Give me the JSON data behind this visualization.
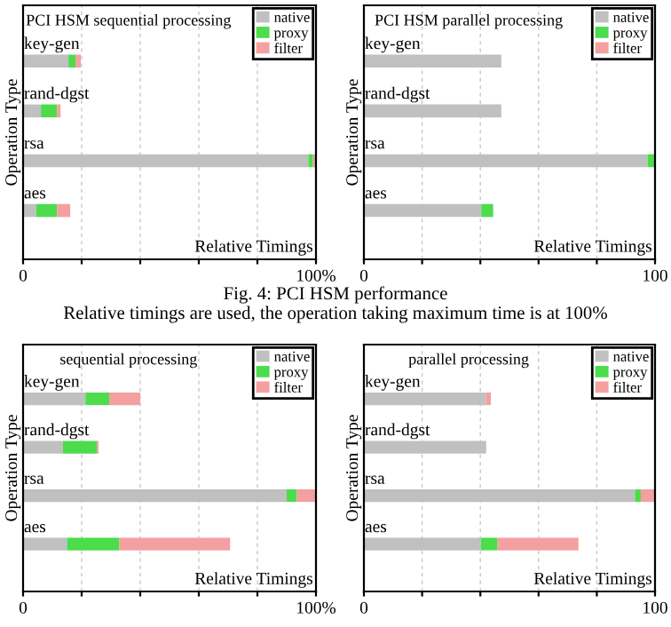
{
  "chart_data": [
    {
      "type": "bar",
      "orientation": "horizontal",
      "stacked": true,
      "title": "PCI HSM sequential processing",
      "xlabel": "Relative Timings",
      "ylabel": "Operation Type",
      "categories": [
        "key-gen",
        "rand-dgst",
        "rsa",
        "aes"
      ],
      "series": [
        {
          "name": "native",
          "color": "#c0c0c0",
          "values": [
            15.5,
            6.1,
            97.4,
            4.5
          ]
        },
        {
          "name": "proxy",
          "color": "#4cdc4c",
          "values": [
            2.4,
            5.5,
            1.6,
            7.1
          ]
        },
        {
          "name": "filter",
          "color": "#f4a0a0",
          "values": [
            1.8,
            1.2,
            1.0,
            4.5
          ]
        }
      ],
      "xlim": [
        0,
        100
      ],
      "xticks": [
        0,
        {
          "value": 20,
          "label": null
        },
        {
          "value": 40,
          "label": null
        },
        {
          "value": 60,
          "label": null
        },
        {
          "value": 80,
          "label": null
        },
        {
          "value": 100,
          "label": "100%"
        }
      ],
      "grid": "x",
      "legend": "top right",
      "annotations": [
        "Fig. 4: PCI HSM performance",
        "Relative timings are used, the operation taking maximum time is at 100%"
      ]
    },
    {
      "type": "bar",
      "orientation": "horizontal",
      "stacked": true,
      "title": "PCI HSM parallel processing",
      "xlabel": "Relative Timings",
      "ylabel": "Operation Type",
      "categories": [
        "key-gen",
        "rand-dgst",
        "rsa",
        "aes"
      ],
      "series": [
        {
          "name": "native",
          "color": "#c0c0c0",
          "values": [
            47.2,
            47.2,
            97.4,
            40.3
          ]
        },
        {
          "name": "proxy",
          "color": "#4cdc4c",
          "values": [
            0,
            0,
            2.4,
            4.1
          ]
        },
        {
          "name": "filter",
          "color": "#f4a0a0",
          "values": [
            0,
            0,
            0,
            0
          ]
        }
      ],
      "xlim": [
        0,
        100
      ],
      "xticks": [
        0,
        {
          "value": 20,
          "label": null
        },
        {
          "value": 40,
          "label": null
        },
        {
          "value": 60,
          "label": null
        },
        {
          "value": 80,
          "label": null
        },
        100
      ],
      "grid": "x",
      "legend": "top right"
    },
    {
      "type": "bar",
      "orientation": "horizontal",
      "stacked": true,
      "title": "sequential processing",
      "xlabel": "Relative Timings",
      "ylabel": "Operation Type",
      "categories": [
        "key-gen",
        "rand-dgst",
        "rsa",
        "aes"
      ],
      "series": [
        {
          "name": "native",
          "color": "#c0c0c0",
          "values": [
            21.3,
            13.6,
            90.0,
            15.0
          ]
        },
        {
          "name": "proxy",
          "color": "#4cdc4c",
          "values": [
            8.1,
            11.6,
            3.5,
            17.9
          ]
        },
        {
          "name": "filter",
          "color": "#f4a0a0",
          "values": [
            10.6,
            0.6,
            6.5,
            37.8
          ]
        }
      ],
      "xlim": [
        0,
        100
      ],
      "xticks": [
        0,
        {
          "value": 20,
          "label": null
        },
        {
          "value": 40,
          "label": null
        },
        {
          "value": 60,
          "label": null
        },
        {
          "value": 80,
          "label": null
        },
        {
          "value": 100,
          "label": "100%"
        }
      ],
      "grid": "x",
      "legend": "top right"
    },
    {
      "type": "bar",
      "orientation": "horizontal",
      "stacked": true,
      "title": "parallel processing",
      "xlabel": "Relative Timings",
      "ylabel": "Operation Type",
      "categories": [
        "key-gen",
        "rand-dgst",
        "rsa",
        "aes"
      ],
      "series": [
        {
          "name": "native",
          "color": "#c0c0c0",
          "values": [
            42.0,
            42.0,
            93.1,
            40.2
          ]
        },
        {
          "name": "proxy",
          "color": "#4cdc4c",
          "values": [
            0,
            0,
            2.0,
            5.7
          ]
        },
        {
          "name": "filter",
          "color": "#f4a0a0",
          "values": [
            1.6,
            0,
            4.9,
            27.8
          ]
        }
      ],
      "xlim": [
        0,
        100
      ],
      "xticks": [
        0,
        {
          "value": 20,
          "label": null
        },
        {
          "value": 40,
          "label": null
        },
        {
          "value": 60,
          "label": null
        },
        {
          "value": 80,
          "label": null
        },
        100
      ],
      "grid": "x",
      "legend": "top right"
    }
  ]
}
